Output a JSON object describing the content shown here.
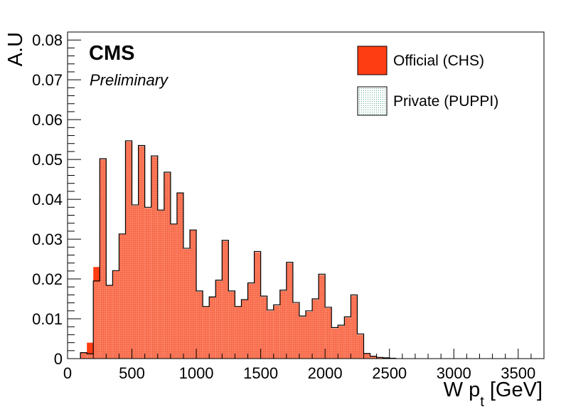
{
  "chart_data": {
    "type": "bar",
    "title": "",
    "xlabel": "W p",
    "xlabel_subscript": "t",
    "xlabel_unit": " [GeV]",
    "ylabel": "A.U",
    "xlim": [
      0,
      3700
    ],
    "ylim": [
      0,
      0.082
    ],
    "bin_width": 50,
    "bin_start": 100,
    "x_ticks": [
      0,
      500,
      1000,
      1500,
      2000,
      2500,
      3000,
      3500
    ],
    "x_tick_labels": [
      "0",
      "500",
      "1000",
      "1500",
      "2000",
      "2500",
      "3000",
      "3500"
    ],
    "y_ticks": [
      0,
      0.01,
      0.02,
      0.03,
      0.04,
      0.05,
      0.06,
      0.07,
      0.08
    ],
    "y_tick_labels": [
      "0",
      "0.01",
      "0.02",
      "0.03",
      "0.04",
      "0.05",
      "0.06",
      "0.07",
      "0.08"
    ],
    "grid": false,
    "legend_position": "top-right",
    "series": [
      {
        "name": "Official (CHS)",
        "color": "#ff3d12",
        "style": "solid",
        "values": [
          0.0015,
          0.004,
          0.023,
          0.05,
          0.0183,
          0.022,
          0.0312,
          0.0545,
          0.0384,
          0.0533,
          0.0378,
          0.0507,
          0.0372,
          0.0466,
          0.0337,
          0.0415,
          0.0275,
          0.0322,
          0.0168,
          0.013,
          0.0154,
          0.0195,
          0.0295,
          0.0168,
          0.013,
          0.0147,
          0.0188,
          0.0267,
          0.0155,
          0.012,
          0.0133,
          0.017,
          0.024,
          0.0139,
          0.0105,
          0.0118,
          0.0148,
          0.021,
          0.0127,
          0.0076,
          0.0082,
          0.0103,
          0.0158,
          0.006,
          0.0012,
          0.0005,
          0.0003,
          0.0002,
          0.0001
        ]
      },
      {
        "name": "Private (PUPPI)",
        "color": "#2a8a6e",
        "style": "hatched",
        "values": [
          0.0015,
          0.0012,
          0.0195,
          0.0502,
          0.0184,
          0.0221,
          0.0313,
          0.0547,
          0.0386,
          0.0535,
          0.038,
          0.0509,
          0.0373,
          0.0468,
          0.0338,
          0.0416,
          0.0277,
          0.0323,
          0.017,
          0.0131,
          0.0155,
          0.0197,
          0.0297,
          0.017,
          0.0131,
          0.0148,
          0.019,
          0.0269,
          0.0157,
          0.0122,
          0.0135,
          0.0172,
          0.0242,
          0.0141,
          0.0107,
          0.012,
          0.015,
          0.0212,
          0.0129,
          0.0078,
          0.0084,
          0.0105,
          0.016,
          0.0062,
          0.0013,
          0.0006,
          0.0003,
          0.0002,
          0.0001
        ]
      }
    ]
  },
  "labels": {
    "cms": "CMS",
    "preliminary": "Preliminary",
    "legend": [
      "Official (CHS)",
      "Private (PUPPI)"
    ]
  }
}
